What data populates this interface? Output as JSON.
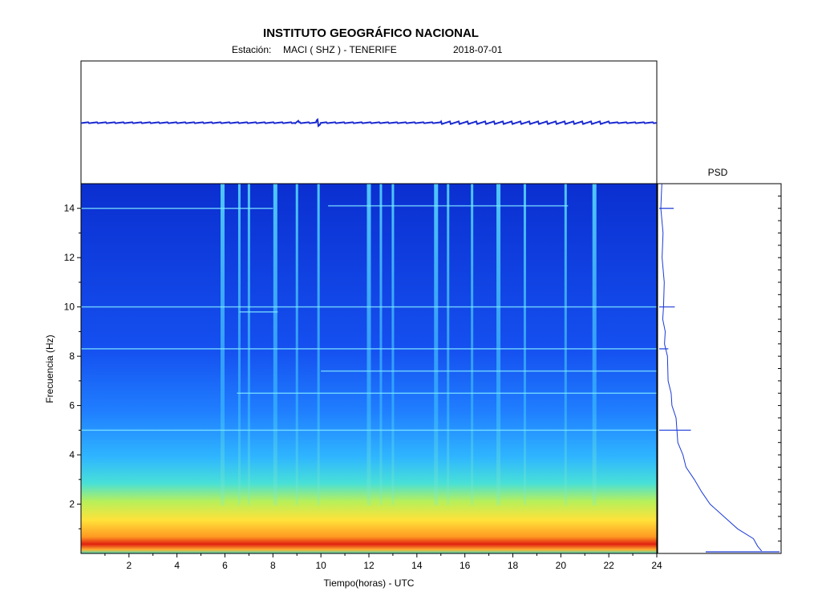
{
  "header": {
    "title": "INSTITUTO GEOGRÁFICO NACIONAL",
    "station_label": "Estación:",
    "station_value": "MACI ( SHZ ) - TENERIFE",
    "date": "2018-07-01"
  },
  "psd_title": "PSD",
  "chart_data": [
    {
      "type": "line",
      "name": "seismogram",
      "x": [
        0,
        24
      ],
      "xlim": [
        0,
        24
      ],
      "note_visible": "helicorder trace, flat with small bursts"
    },
    {
      "type": "heatmap",
      "xlabel": "Tiempo(horas) - UTC",
      "ylabel": "Frecuencia  (Hz)",
      "xlim": [
        0,
        24
      ],
      "ylim": [
        0,
        15
      ],
      "xticks": [
        2,
        4,
        6,
        8,
        10,
        12,
        14,
        16,
        18,
        20,
        22,
        24
      ],
      "yticks": [
        2,
        4,
        6,
        8,
        10,
        12,
        14
      ],
      "colormap": [
        "#0b2fd0",
        "#1e6bff",
        "#2fb6ff",
        "#48e0d8",
        "#b8f05a",
        "#ffe23a",
        "#ff8a1c",
        "#e02010"
      ],
      "energy_bursts_hours": [
        5.9,
        6.6,
        7.0,
        8.1,
        9.0,
        9.9,
        12.0,
        12.5,
        13.0,
        14.8,
        15.3,
        16.3,
        17.4,
        18.5,
        20.2,
        21.4
      ],
      "tonal_lines": [
        {
          "hz": 14.0,
          "from": 0,
          "to": 8.0
        },
        {
          "hz": 14.1,
          "from": 10.3,
          "to": 20.3
        },
        {
          "hz": 10.0,
          "from": 0,
          "to": 24
        },
        {
          "hz": 9.8,
          "from": 6.6,
          "to": 8.2
        },
        {
          "hz": 7.4,
          "from": 10,
          "to": 24
        },
        {
          "hz": 6.5,
          "from": 6.5,
          "to": 24
        },
        {
          "hz": 5.0,
          "from": 0,
          "to": 24
        },
        {
          "hz": 8.3,
          "from": 0,
          "to": 24
        }
      ]
    },
    {
      "type": "line",
      "name": "PSD",
      "orientation": "vertical",
      "ylim": [
        0,
        15
      ],
      "freq": [
        0.1,
        0.3,
        0.6,
        1.0,
        1.5,
        2.0,
        2.5,
        3.0,
        3.5,
        4.0,
        4.5,
        5.0,
        5.5,
        6.0,
        6.5,
        7.0,
        7.5,
        8.0,
        8.5,
        9.0,
        9.5,
        10.0,
        11.0,
        12.0,
        13.0,
        14.0,
        15.0
      ],
      "level": [
        0.95,
        0.9,
        0.85,
        0.72,
        0.58,
        0.47,
        0.38,
        0.3,
        0.24,
        0.2,
        0.17,
        0.15,
        0.13,
        0.11,
        0.09,
        0.08,
        0.065,
        0.05,
        0.04,
        0.035,
        0.03,
        0.025,
        0.02,
        0.018,
        0.015,
        0.012,
        0.01
      ],
      "peaks_hz": [
        5.0,
        10.0,
        14.0,
        8.3
      ]
    }
  ]
}
